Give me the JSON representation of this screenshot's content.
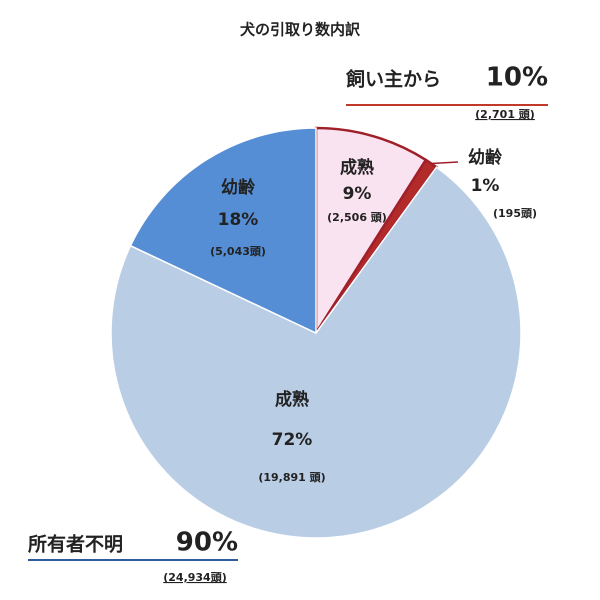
{
  "chart_data": {
    "type": "pie",
    "title": "犬の引取り数内訳",
    "categories": [
      "成熟",
      "幼齢",
      "成熟",
      "幼齢"
    ],
    "values": [
      9,
      1,
      72,
      18
    ],
    "value_labels": [
      "9%",
      "1%",
      "72%",
      "18%"
    ],
    "counts": [
      2506,
      195,
      19891,
      5043
    ],
    "count_labels": [
      "(2,506 頭)",
      "(195頭)",
      "(19,891 頭)",
      "(5,043頭)"
    ],
    "colors": [
      "#fae3f0",
      "#b22a2a",
      "#b9cde5",
      "#558ed5"
    ],
    "groups": [
      {
        "name": "飼い主から",
        "value": 10,
        "value_label": "10%",
        "count": 2701,
        "count_label": "(2,701 頭)",
        "color": "#c0392b"
      },
      {
        "name": "所有者不明",
        "value": 90,
        "value_label": "90%",
        "count": 24934,
        "count_label": "(24,934頭)",
        "color": "#2e5c9a"
      }
    ]
  }
}
